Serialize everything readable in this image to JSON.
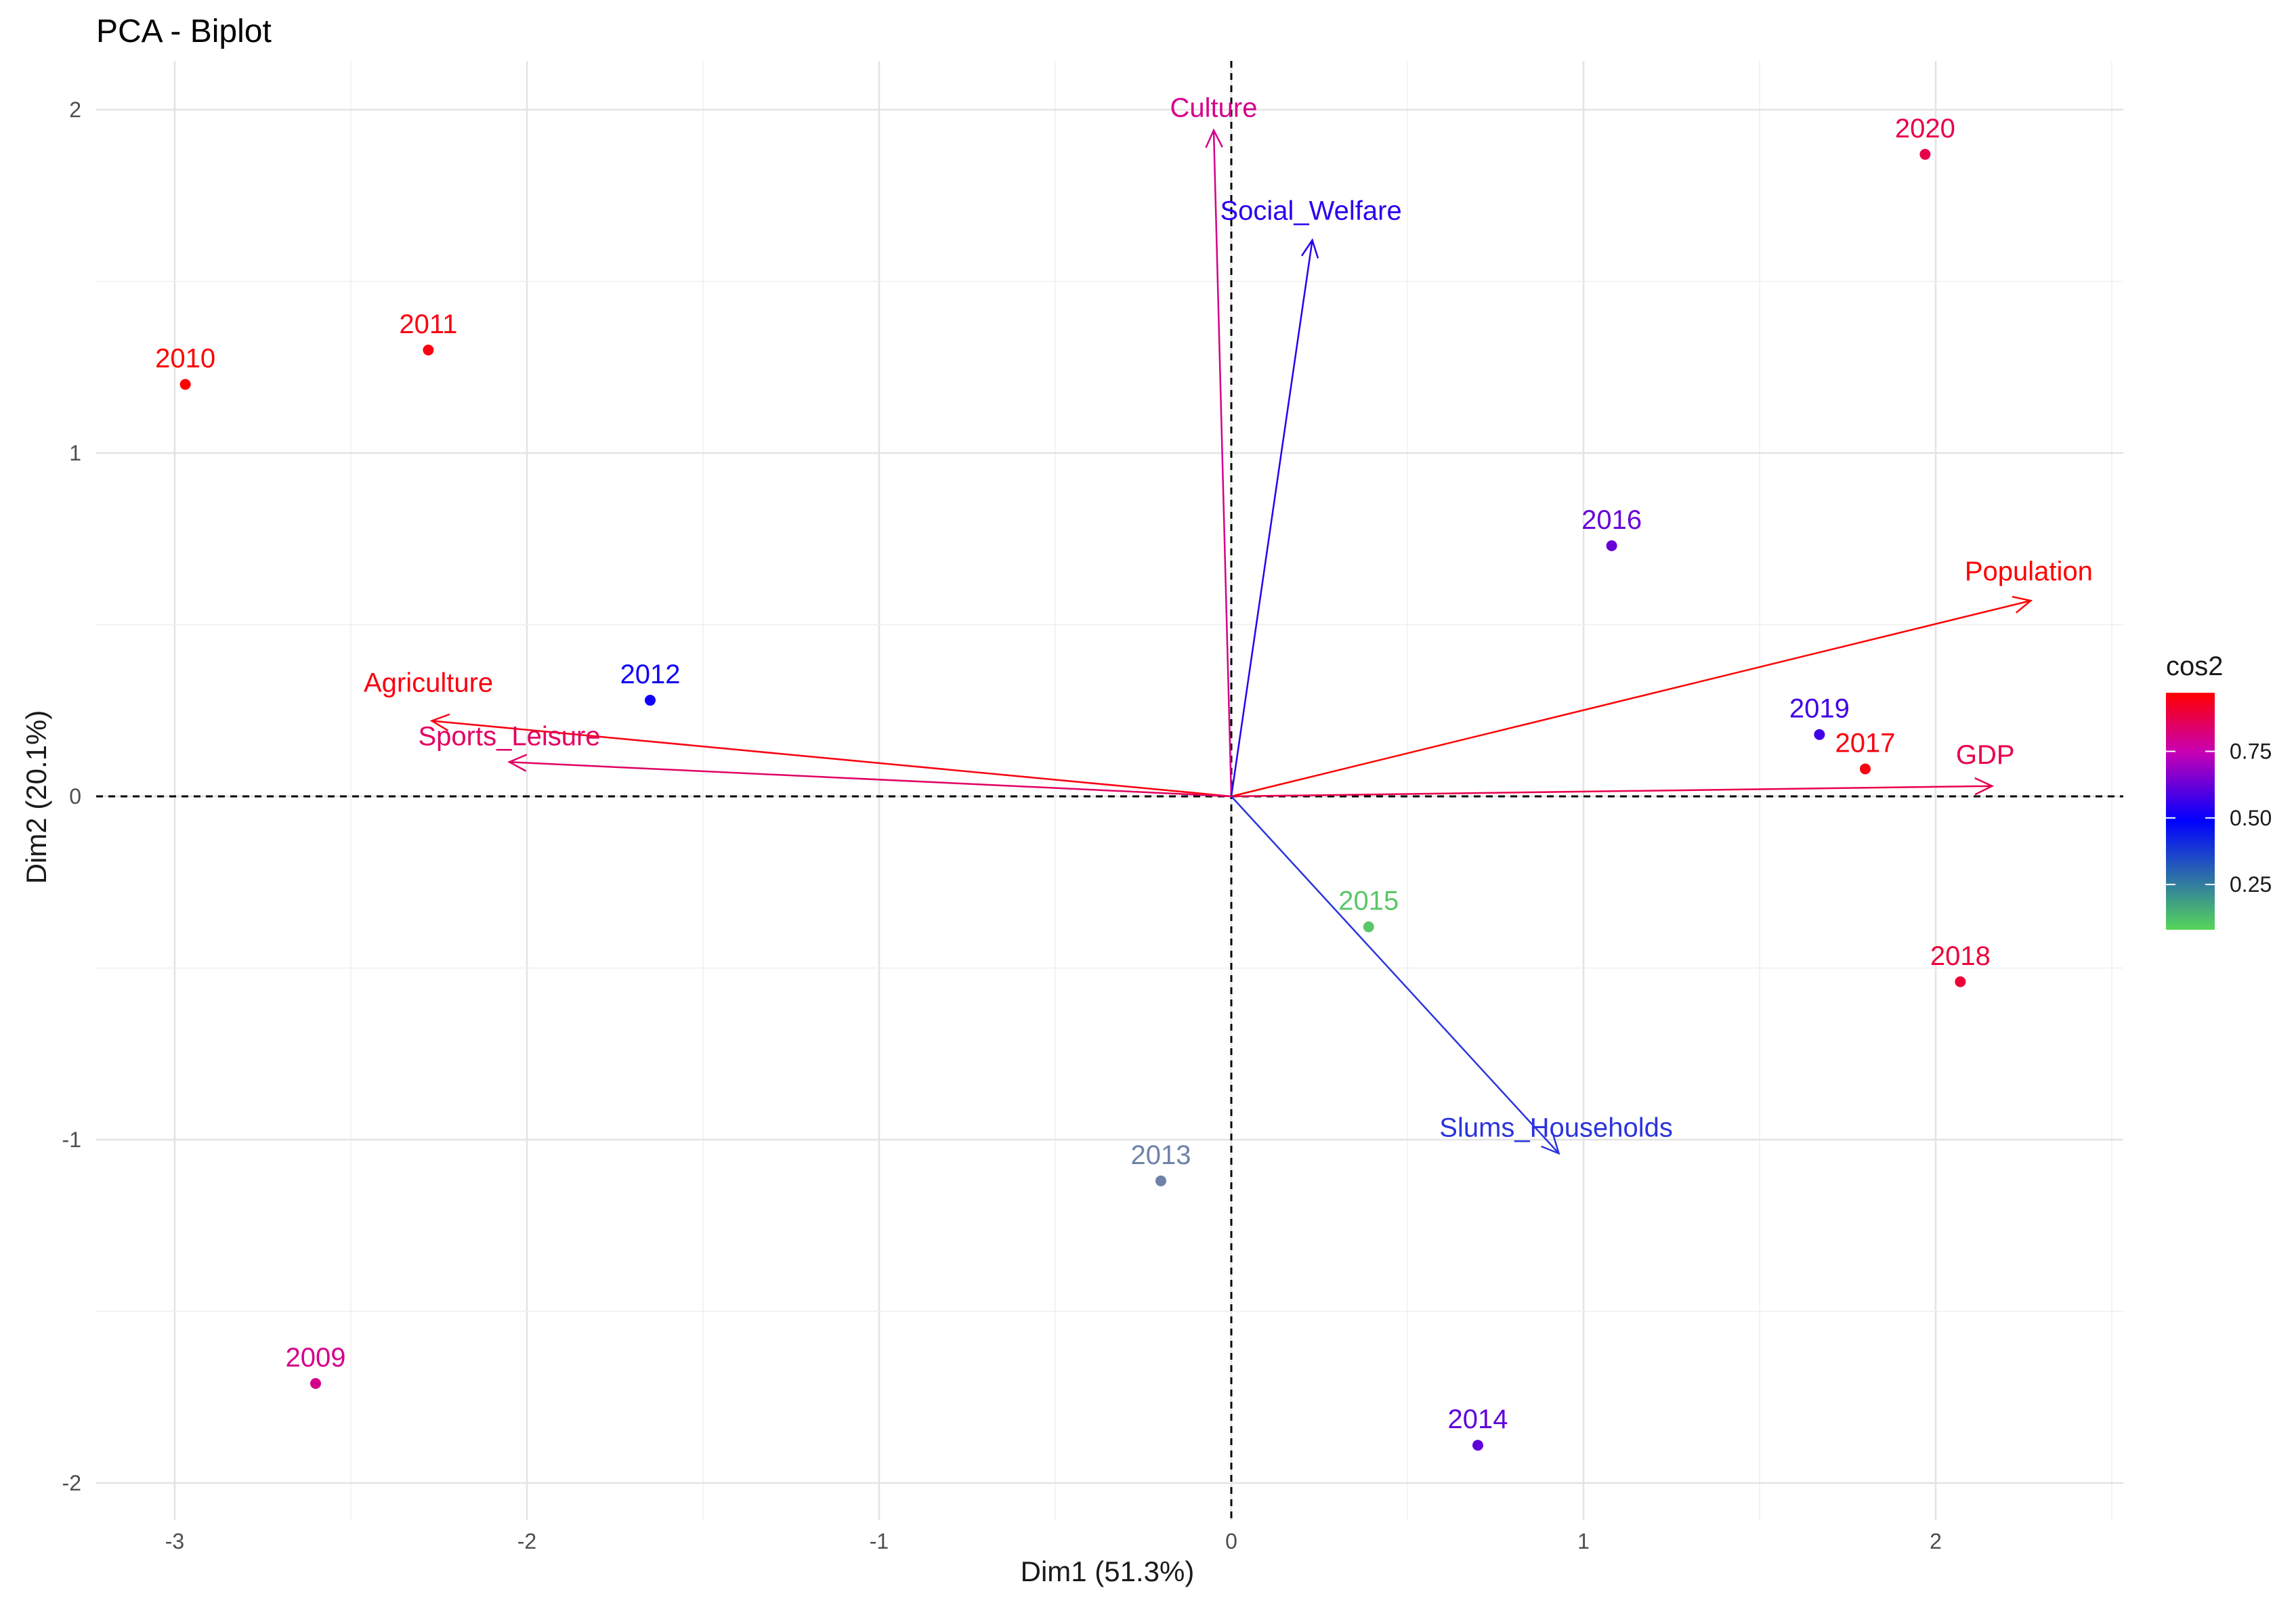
{
  "chart_data": {
    "type": "scatter",
    "title": "PCA - Biplot",
    "xlabel": "Dim1 (51.3%)",
    "ylabel": "Dim2 (20.1%)",
    "xlim": [
      -3.3,
      2.53
    ],
    "ylim": [
      -2.12,
      2.12
    ],
    "xticks": [
      -3,
      -2,
      -1,
      0,
      1,
      2
    ],
    "yticks": [
      -2,
      -1,
      0,
      1,
      2
    ],
    "grid": true,
    "legend": {
      "title": "cos2",
      "position": "right",
      "ticks": [
        0.25,
        0.5,
        0.75
      ],
      "tick_labels": [
        "0.25",
        "0.50",
        "0.75"
      ],
      "range": [
        0.08,
        0.97
      ],
      "colors": [
        "#56d65a",
        "#0000ff",
        "#ff0000"
      ]
    },
    "individuals": [
      {
        "label": "2009",
        "x": -2.6,
        "y": -1.71,
        "cos2": 0.8
      },
      {
        "label": "2010",
        "x": -2.97,
        "y": 1.2,
        "cos2": 0.97
      },
      {
        "label": "2011",
        "x": -2.28,
        "y": 1.3,
        "cos2": 0.95
      },
      {
        "label": "2012",
        "x": -1.65,
        "y": 0.28,
        "cos2": 0.52
      },
      {
        "label": "2013",
        "x": -0.2,
        "y": -1.12,
        "cos2": 0.3
      },
      {
        "label": "2014",
        "x": 0.7,
        "y": -1.89,
        "cos2": 0.62
      },
      {
        "label": "2015",
        "x": 0.39,
        "y": -0.38,
        "cos2": 0.12
      },
      {
        "label": "2016",
        "x": 1.08,
        "y": 0.73,
        "cos2": 0.63
      },
      {
        "label": "2017",
        "x": 1.8,
        "y": 0.08,
        "cos2": 0.95
      },
      {
        "label": "2018",
        "x": 2.07,
        "y": -0.54,
        "cos2": 0.9
      },
      {
        "label": "2019",
        "x": 1.67,
        "y": 0.18,
        "cos2": 0.58
      },
      {
        "label": "2020",
        "x": 1.97,
        "y": 1.87,
        "cos2": 0.88
      }
    ],
    "variables": [
      {
        "label": "Culture",
        "x": -0.05,
        "y": 1.94,
        "cos2": 0.8
      },
      {
        "label": "Social_Welfare",
        "x": 0.23,
        "y": 1.62,
        "cos2": 0.55
      },
      {
        "label": "Population",
        "x": 2.27,
        "y": 0.57,
        "cos2": 0.97
      },
      {
        "label": "GDP",
        "x": 2.16,
        "y": 0.03,
        "cos2": 0.88
      },
      {
        "label": "Agriculture",
        "x": -2.27,
        "y": 0.22,
        "cos2": 0.95
      },
      {
        "label": "Sports_Leisure",
        "x": -2.05,
        "y": 0.1,
        "cos2": 0.85
      },
      {
        "label": "Slums_Households",
        "x": 0.93,
        "y": -1.04,
        "cos2": 0.42
      }
    ]
  }
}
